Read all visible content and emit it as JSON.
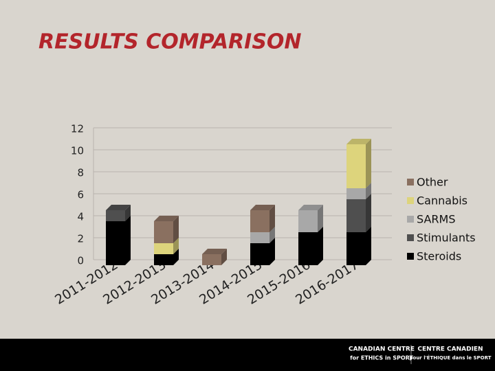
{
  "title": "RESULTS COMPARISON",
  "chart_data": {
    "type": "bar3d_stacked",
    "categories": [
      "2011-2012",
      "2012-2013",
      "2013-2014",
      "2014-2015",
      "2015-2016",
      "2016-2017"
    ],
    "series": [
      {
        "name": "Steroids",
        "color": "#000000",
        "values": [
          4,
          1,
          0,
          2,
          3,
          3
        ]
      },
      {
        "name": "Stimulants",
        "color": "#4f4f4f",
        "values": [
          1,
          0,
          0,
          0,
          0,
          3
        ]
      },
      {
        "name": "SARMS",
        "color": "#a8a8a8",
        "values": [
          0,
          0,
          0,
          1,
          2,
          1
        ]
      },
      {
        "name": "Cannabis",
        "color": "#ddd47c",
        "values": [
          0,
          1,
          0,
          0,
          0,
          4
        ]
      },
      {
        "name": "Other",
        "color": "#8a7060",
        "values": [
          0,
          2,
          1,
          2,
          0,
          0
        ]
      }
    ],
    "ylim": [
      0,
      12
    ],
    "yticks": [
      0,
      2,
      4,
      6,
      8,
      10,
      12
    ],
    "grid": true,
    "legend": "right"
  },
  "footer": {
    "logo_en": [
      "CANADIAN CENTRE",
      "for ETHICS in SPORT"
    ],
    "logo_fr": [
      "CENTRE CANADIEN",
      "pour l'ÉTHIQUE dans le SPORT"
    ]
  }
}
